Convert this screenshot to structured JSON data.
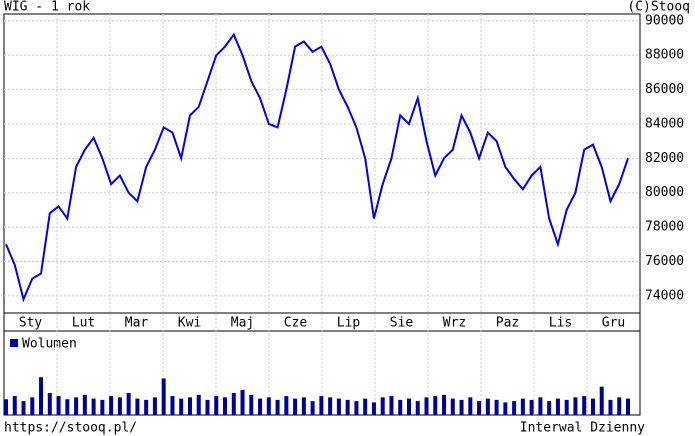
{
  "chart_data": {
    "type": "line",
    "title": "WIG - 1 rok",
    "source": "(C)Stooq",
    "url": "https://stooq.pl/",
    "interval": "Interwal Dzienny",
    "months": [
      "Sty",
      "Lut",
      "Mar",
      "Kwi",
      "Maj",
      "Cze",
      "Lip",
      "Sie",
      "Wrz",
      "Paz",
      "Lis",
      "Gru"
    ],
    "color": "#0000ee",
    "ylim": [
      73000,
      90400
    ],
    "yticks": [
      74000,
      76000,
      78000,
      80000,
      82000,
      84000,
      86000,
      88000,
      90000
    ],
    "grid": true,
    "values": [
      77000,
      75800,
      73800,
      75000,
      75300,
      78800,
      79200,
      78500,
      81500,
      82500,
      83200,
      82000,
      80500,
      81000,
      80000,
      79500,
      81500,
      82500,
      83800,
      83500,
      82000,
      84500,
      85000,
      86500,
      88000,
      88500,
      89200,
      88000,
      86500,
      85500,
      84000,
      83800,
      86000,
      88500,
      88800,
      88200,
      88500,
      87500,
      86000,
      85000,
      83800,
      82000,
      78500,
      80500,
      82000,
      84500,
      84000,
      85500,
      83000,
      81000,
      82000,
      82500,
      84500,
      83500,
      82000,
      83500,
      83000,
      81500,
      80800,
      80200,
      81000,
      81500,
      78500,
      77000,
      79000,
      80000,
      82500,
      82800,
      81500,
      79500,
      80500,
      82000
    ],
    "volume_name": "Wolumen",
    "volume_lim": [
      0,
      100
    ],
    "volume": [
      25,
      30,
      22,
      28,
      60,
      35,
      30,
      25,
      28,
      32,
      26,
      24,
      30,
      28,
      35,
      26,
      24,
      28,
      58,
      30,
      26,
      28,
      32,
      24,
      30,
      28,
      35,
      40,
      32,
      26,
      28,
      24,
      30,
      26,
      28,
      22,
      30,
      28,
      26,
      24,
      22,
      26,
      20,
      28,
      30,
      24,
      26,
      22,
      28,
      30,
      32,
      26,
      24,
      28,
      22,
      26,
      24,
      20,
      22,
      26,
      24,
      28,
      22,
      26,
      24,
      28,
      30,
      26,
      45,
      24,
      28,
      26
    ]
  }
}
